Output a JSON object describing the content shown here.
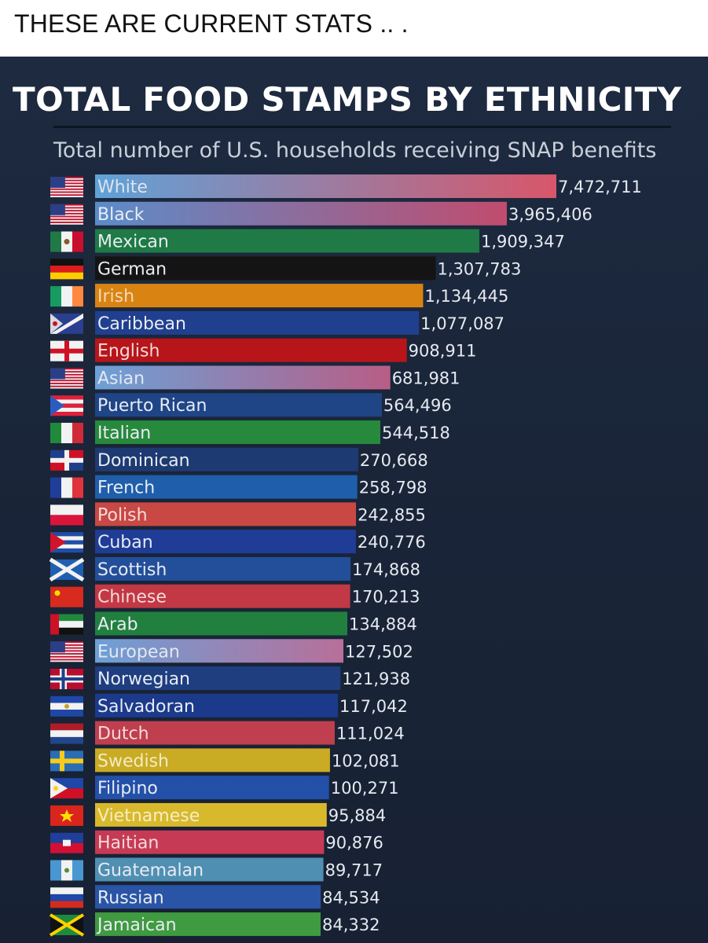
{
  "post": {
    "caption": "THESE ARE CURRENT STATS .. ."
  },
  "chart_data": {
    "type": "bar",
    "orientation": "horizontal",
    "title": "TOTAL FOOD STAMPS BY ETHNICITY",
    "subtitle": "Total number of U.S. households receiving SNAP benefits",
    "categories": [
      "White",
      "Black",
      "Mexican",
      "German",
      "Irish",
      "Caribbean",
      "English",
      "Asian",
      "Puerto Rican",
      "Italian",
      "Dominican",
      "French",
      "Polish",
      "Cuban",
      "Scottish",
      "Chinese",
      "Arab",
      "European",
      "Norwegian",
      "Salvadoran",
      "Dutch",
      "Swedish",
      "Filipino",
      "Vietnamese",
      "Haitian",
      "Guatemalan",
      "Russian",
      "Jamaican"
    ],
    "values": [
      7472711,
      3965406,
      1909347,
      1307783,
      1134445,
      1077087,
      908911,
      681981,
      564496,
      544518,
      270668,
      258798,
      242855,
      240776,
      174868,
      170213,
      134884,
      127502,
      121938,
      117042,
      111024,
      102081,
      100271,
      95884,
      90876,
      89717,
      84534,
      84332
    ],
    "value_labels": [
      "7,472,711",
      "3,965,406",
      "1,909,347",
      "1,307,783",
      "1,134,445",
      "1,077,087",
      "908,911",
      "681,981",
      "564,496",
      "544,518",
      "270,668",
      "258,798",
      "242,855",
      "240,776",
      "174,868",
      "170,213",
      "134,884",
      "127,502",
      "121,938",
      "117,042",
      "111,024",
      "102,081",
      "100,271",
      "95,884",
      "90,876",
      "89,717",
      "84,534",
      "84,332"
    ],
    "bar_colors": [
      "#d8566a",
      "#c04c6e",
      "#1f7a45",
      "#141414",
      "#d98412",
      "#213f8f",
      "#b8151b",
      "#b85d86",
      "#1f4587",
      "#27893c",
      "#1e3a72",
      "#1f5eab",
      "#c94844",
      "#1f3d96",
      "#234f9a",
      "#c23845",
      "#21803e",
      "#b86f9a",
      "#1e3e80",
      "#1b3a8c",
      "#bf3f4e",
      "#c9ab24",
      "#2350a8",
      "#d9b92c",
      "#c73a55",
      "#4f8fb2",
      "#2a55a6",
      "#3f9a40"
    ],
    "bar_gradient_start": [
      "#5fa2d8",
      "#5b8cc9",
      null,
      null,
      null,
      null,
      null,
      "#6da0d6",
      null,
      null,
      null,
      null,
      null,
      null,
      null,
      null,
      null,
      "#6da0d6",
      null,
      null,
      null,
      null,
      null,
      null,
      null,
      null,
      null,
      null
    ],
    "label_colors": [
      "#dde3ee",
      "#e8ecf3",
      "#e8ecf3",
      "#e8ecf3",
      "#f2d9b8",
      "#e8ecf3",
      "#f4dada",
      "#e3e8f2",
      "#e8ecf3",
      "#e8ecf3",
      "#e8ecf3",
      "#e8ecf3",
      "#f4dada",
      "#e8ecf3",
      "#e8ecf3",
      "#f4dada",
      "#e8ecf3",
      "#e3e8f2",
      "#e8ecf3",
      "#e8ecf3",
      "#f4dada",
      "#f2ecc4",
      "#e8ecf3",
      "#f4eec6",
      "#f4dada",
      "#e8ecf3",
      "#e8ecf3",
      "#e8ecf3"
    ],
    "flag_icons": [
      "flag-usa",
      "flag-usa",
      "flag-mexico",
      "flag-germany",
      "flag-ireland",
      "flag-caribbean",
      "flag-england",
      "flag-usa",
      "flag-puerto-rico",
      "flag-italy",
      "flag-dominican-republic",
      "flag-france",
      "flag-poland",
      "flag-cuba",
      "flag-scotland",
      "flag-china",
      "flag-uae",
      "flag-usa",
      "flag-norway",
      "flag-el-salvador",
      "flag-netherlands",
      "flag-sweden",
      "flag-philippines",
      "flag-vietnam",
      "flag-haiti",
      "flag-guatemala",
      "flag-russia",
      "flag-jamaica"
    ],
    "axis": {
      "x_visible": false,
      "y_visible": false,
      "grid": false
    },
    "legend": "none"
  }
}
